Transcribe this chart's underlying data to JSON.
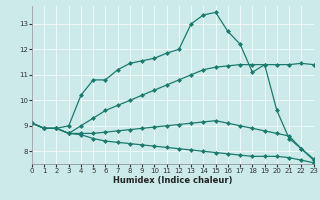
{
  "xlabel": "Humidex (Indice chaleur)",
  "bg_color": "#cceaea",
  "line_color": "#1a7a6e",
  "lines": [
    {
      "x": [
        0,
        1,
        2,
        3,
        4,
        5,
        6,
        7,
        8,
        9,
        10,
        11,
        12,
        13,
        14,
        15,
        16,
        17,
        18,
        19,
        20,
        21,
        22,
        23
      ],
      "y": [
        9.1,
        8.9,
        8.9,
        9.0,
        10.2,
        10.8,
        10.8,
        11.2,
        11.45,
        11.55,
        11.65,
        11.85,
        12.0,
        13.0,
        13.35,
        13.45,
        12.7,
        12.2,
        11.1,
        11.4,
        9.6,
        8.5,
        8.1,
        7.65
      ]
    },
    {
      "x": [
        0,
        1,
        2,
        3,
        4,
        5,
        6,
        7,
        8,
        9,
        10,
        11,
        12,
        13,
        14,
        15,
        16,
        17,
        18,
        19,
        20,
        21,
        22,
        23
      ],
      "y": [
        9.1,
        8.9,
        8.9,
        8.7,
        9.0,
        9.3,
        9.6,
        9.8,
        10.0,
        10.2,
        10.4,
        10.6,
        10.8,
        11.0,
        11.2,
        11.3,
        11.35,
        11.4,
        11.4,
        11.4,
        11.4,
        11.4,
        11.45,
        11.4
      ]
    },
    {
      "x": [
        0,
        1,
        2,
        3,
        4,
        5,
        6,
        7,
        8,
        9,
        10,
        11,
        12,
        13,
        14,
        15,
        16,
        17,
        18,
        19,
        20,
        21,
        22,
        23
      ],
      "y": [
        9.1,
        8.9,
        8.9,
        8.7,
        8.7,
        8.7,
        8.75,
        8.8,
        8.85,
        8.9,
        8.95,
        9.0,
        9.05,
        9.1,
        9.15,
        9.2,
        9.1,
        9.0,
        8.9,
        8.8,
        8.7,
        8.6,
        8.1,
        7.7
      ]
    },
    {
      "x": [
        0,
        1,
        2,
        3,
        4,
        5,
        6,
        7,
        8,
        9,
        10,
        11,
        12,
        13,
        14,
        15,
        16,
        17,
        18,
        19,
        20,
        21,
        22,
        23
      ],
      "y": [
        9.1,
        8.9,
        8.9,
        8.7,
        8.65,
        8.5,
        8.4,
        8.35,
        8.3,
        8.25,
        8.2,
        8.15,
        8.1,
        8.05,
        8.0,
        7.95,
        7.9,
        7.85,
        7.8,
        7.8,
        7.8,
        7.75,
        7.65,
        7.55
      ]
    }
  ],
  "xlim": [
    0,
    23
  ],
  "ylim": [
    7.5,
    13.7
  ],
  "yticks": [
    8,
    9,
    10,
    11,
    12,
    13
  ],
  "xticks": [
    0,
    1,
    2,
    3,
    4,
    5,
    6,
    7,
    8,
    9,
    10,
    11,
    12,
    13,
    14,
    15,
    16,
    17,
    18,
    19,
    20,
    21,
    22,
    23
  ],
  "marker": "D",
  "marker_size": 2.0,
  "linewidth": 0.9,
  "grid_color": "#b0d8d8",
  "spine_color": "#888888"
}
